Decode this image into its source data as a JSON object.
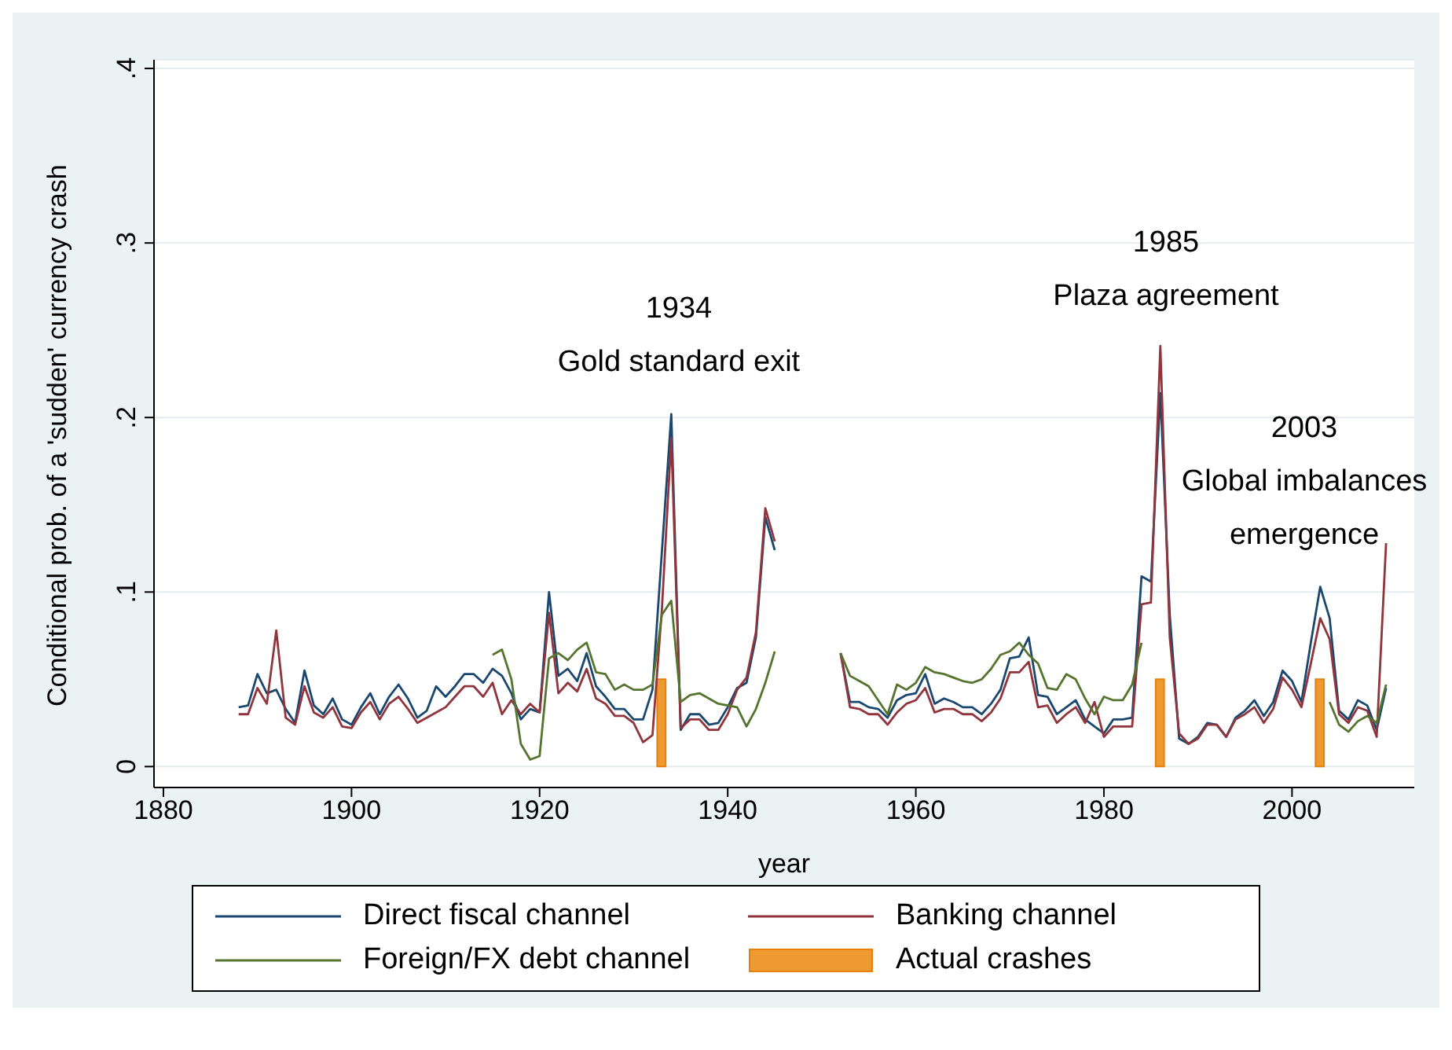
{
  "chart_data": {
    "type": "line",
    "xlabel": "year",
    "ylabel": "Conditional prob. of a 'sudden' currency crash",
    "x": [
      1888,
      1889,
      1890,
      1891,
      1892,
      1893,
      1894,
      1895,
      1896,
      1897,
      1898,
      1899,
      1900,
      1901,
      1902,
      1903,
      1904,
      1905,
      1906,
      1907,
      1908,
      1909,
      1910,
      1911,
      1912,
      1913,
      1914,
      1915,
      1916,
      1917,
      1918,
      1919,
      1920,
      1921,
      1922,
      1923,
      1924,
      1925,
      1926,
      1927,
      1928,
      1929,
      1930,
      1931,
      1932,
      1933,
      1934,
      1935,
      1936,
      1937,
      1938,
      1939,
      1940,
      1941,
      1942,
      1943,
      1944,
      1945,
      1946,
      1947,
      1948,
      1949,
      1950,
      1951,
      1952,
      1953,
      1954,
      1955,
      1956,
      1957,
      1958,
      1959,
      1960,
      1961,
      1962,
      1963,
      1964,
      1965,
      1966,
      1967,
      1968,
      1969,
      1970,
      1971,
      1972,
      1973,
      1974,
      1975,
      1976,
      1977,
      1978,
      1979,
      1980,
      1981,
      1982,
      1983,
      1984,
      1985,
      1986,
      1987,
      1988,
      1989,
      1990,
      1991,
      1992,
      1993,
      1994,
      1995,
      1996,
      1997,
      1998,
      1999,
      2000,
      2001,
      2002,
      2003,
      2004,
      2005,
      2006,
      2007,
      2008,
      2009,
      2010
    ],
    "series": [
      {
        "name": "Direct fiscal channel",
        "color": "#1a476f",
        "values": [
          0.034,
          0.035,
          0.053,
          0.042,
          0.044,
          0.033,
          0.025,
          0.055,
          0.035,
          0.03,
          0.039,
          0.027,
          0.024,
          0.034,
          0.042,
          0.03,
          0.04,
          0.047,
          0.039,
          0.028,
          0.032,
          0.046,
          0.04,
          0.046,
          0.053,
          0.053,
          0.048,
          0.056,
          0.052,
          0.042,
          0.027,
          0.033,
          0.031,
          0.1,
          0.052,
          0.056,
          0.049,
          0.065,
          0.046,
          0.04,
          0.033,
          0.033,
          0.027,
          0.027,
          0.044,
          0.123,
          0.202,
          0.021,
          0.03,
          0.03,
          0.024,
          0.025,
          0.034,
          0.045,
          0.048,
          0.074,
          0.143,
          0.124,
          null,
          null,
          null,
          null,
          null,
          null,
          0.065,
          0.037,
          0.037,
          0.034,
          0.033,
          0.028,
          0.038,
          0.041,
          0.042,
          0.053,
          0.036,
          0.039,
          0.037,
          0.034,
          0.034,
          0.03,
          0.036,
          0.044,
          0.062,
          0.063,
          0.074,
          0.041,
          0.04,
          0.03,
          0.034,
          0.038,
          0.027,
          0.023,
          0.019,
          0.027,
          0.027,
          0.028,
          0.109,
          0.106,
          0.214,
          0.087,
          0.016,
          0.013,
          0.017,
          0.025,
          0.024,
          0.017,
          0.028,
          0.032,
          0.038,
          0.029,
          0.037,
          0.055,
          0.049,
          0.037,
          0.071,
          0.103,
          0.085,
          0.032,
          0.027,
          0.038,
          0.035,
          0.021,
          0.045
        ]
      },
      {
        "name": "Banking channel",
        "color": "#90353b",
        "values": [
          0.03,
          0.03,
          0.045,
          0.036,
          0.078,
          0.028,
          0.024,
          0.046,
          0.031,
          0.028,
          0.034,
          0.023,
          0.022,
          0.031,
          0.037,
          0.027,
          0.036,
          0.04,
          0.033,
          0.025,
          0.028,
          0.031,
          0.034,
          0.04,
          0.046,
          0.046,
          0.04,
          0.048,
          0.03,
          0.038,
          0.03,
          0.036,
          0.031,
          0.088,
          0.042,
          0.048,
          0.043,
          0.056,
          0.039,
          0.036,
          0.029,
          0.029,
          0.025,
          0.014,
          0.018,
          0.09,
          0.188,
          0.022,
          0.027,
          0.027,
          0.021,
          0.021,
          0.03,
          0.044,
          0.051,
          0.077,
          0.148,
          0.129,
          null,
          null,
          null,
          null,
          null,
          null,
          0.065,
          0.034,
          0.033,
          0.03,
          0.03,
          0.024,
          0.031,
          0.036,
          0.038,
          0.045,
          0.031,
          0.033,
          0.033,
          0.03,
          0.03,
          0.026,
          0.031,
          0.039,
          0.054,
          0.054,
          0.06,
          0.034,
          0.035,
          0.025,
          0.03,
          0.034,
          0.025,
          0.037,
          0.017,
          0.023,
          0.023,
          0.023,
          0.093,
          0.094,
          0.241,
          0.074,
          0.019,
          0.013,
          0.016,
          0.024,
          0.024,
          0.017,
          0.027,
          0.03,
          0.034,
          0.025,
          0.033,
          0.051,
          0.044,
          0.034,
          0.059,
          0.085,
          0.073,
          0.03,
          0.025,
          0.034,
          0.032,
          0.017,
          0.128
        ]
      },
      {
        "name": "Foreign/FX debt channel",
        "color": "#55752f",
        "values": [
          null,
          null,
          null,
          null,
          null,
          null,
          null,
          null,
          null,
          null,
          null,
          null,
          null,
          null,
          null,
          null,
          null,
          null,
          null,
          null,
          null,
          null,
          null,
          null,
          null,
          null,
          null,
          0.064,
          0.067,
          0.05,
          0.013,
          0.004,
          0.006,
          0.062,
          0.065,
          0.061,
          0.067,
          0.071,
          0.054,
          0.053,
          0.044,
          0.047,
          0.044,
          0.044,
          0.047,
          0.087,
          0.095,
          0.037,
          0.041,
          0.042,
          0.039,
          0.036,
          0.035,
          0.034,
          0.023,
          0.033,
          0.048,
          0.066,
          null,
          null,
          null,
          null,
          null,
          null,
          0.065,
          0.052,
          0.049,
          0.046,
          0.038,
          0.03,
          0.047,
          0.044,
          0.048,
          0.057,
          0.054,
          0.053,
          0.051,
          0.049,
          0.048,
          0.05,
          0.056,
          0.064,
          0.066,
          0.071,
          0.064,
          0.059,
          0.045,
          0.044,
          0.053,
          0.05,
          0.039,
          0.03,
          0.04,
          0.038,
          0.038,
          0.047,
          0.071,
          null,
          null,
          null,
          null,
          null,
          null,
          null,
          null,
          null,
          null,
          null,
          null,
          null,
          null,
          null,
          null,
          null,
          null,
          null,
          0.037,
          0.024,
          0.02,
          0.026,
          0.029,
          0.025,
          0.047
        ]
      },
      {
        "name": "Actual crashes",
        "type": "bar",
        "color": "#ed9a33",
        "x": [
          1933,
          1986,
          2003
        ],
        "values": [
          0.05,
          0.05,
          0.05
        ]
      }
    ],
    "xlim": [
      1879,
      2013
    ],
    "xticks": [
      1880,
      1900,
      1920,
      1940,
      1960,
      1980,
      2000
    ],
    "ylim": [
      -0.012,
      0.405
    ],
    "yticks": [
      0,
      {
        "value": 0.1,
        "label": ".1"
      },
      {
        "value": 0.2,
        "label": ".2"
      },
      {
        "value": 0.3,
        "label": ".3"
      },
      {
        "value": 0.4,
        "label": ".4"
      }
    ],
    "grid": "y",
    "legend": "bottom",
    "annotations": [
      "1934\nGold standard exit",
      "1985\nPlaza agreement",
      "2003\nGlobal imbalances\nemergence"
    ]
  }
}
